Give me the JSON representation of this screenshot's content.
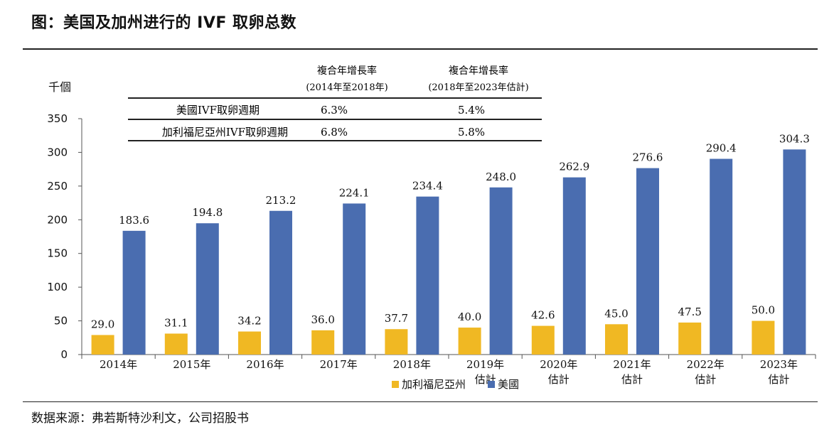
{
  "title": "图：美国及加州进行的 IVF 取卵总数",
  "source": "数据来源：弗若斯特沙利文，公司招股书",
  "colors": {
    "ca": "#f0b823",
    "us": "#4a6db0",
    "axis": "#555555",
    "text": "#111111"
  },
  "cagr_table": {
    "col1_header_line1": "複合年增長率",
    "col1_header_line2": "(2014年至2018年)",
    "col2_header_line1": "複合年增長率",
    "col2_header_line2": "(2018年至2023年估計)",
    "rows": [
      {
        "label": "美國IVF取卵週期",
        "v1": "6.3%",
        "v2": "5.4%"
      },
      {
        "label": "加利福尼亞州IVF取卵週期",
        "v1": "6.8%",
        "v2": "5.8%"
      }
    ]
  },
  "chart_data": {
    "type": "bar",
    "ylabel": "千個",
    "ylim": [
      0,
      350
    ],
    "yticks": [
      0,
      50,
      100,
      150,
      200,
      250,
      300,
      350
    ],
    "grid": false,
    "legend_position": "bottom",
    "categories": [
      [
        "2014年"
      ],
      [
        "2015年"
      ],
      [
        "2016年"
      ],
      [
        "2017年"
      ],
      [
        "2018年"
      ],
      [
        "2019年",
        "估計"
      ],
      [
        "2020年",
        "估計"
      ],
      [
        "2021年",
        "估計"
      ],
      [
        "2022年",
        "估計"
      ],
      [
        "2023年",
        "估計"
      ]
    ],
    "series": [
      {
        "name": "加利福尼亞州",
        "color": "#f0b823",
        "values": [
          29.0,
          31.1,
          34.2,
          36.0,
          37.7,
          40.0,
          42.6,
          45.0,
          47.5,
          50.0
        ],
        "labels": [
          "29.0",
          "31.1",
          "34.2",
          "36.0",
          "37.7",
          "40.0",
          "42.6",
          "45.0",
          "47.5",
          "50.0"
        ]
      },
      {
        "name": "美國",
        "color": "#4a6db0",
        "values": [
          183.6,
          194.8,
          213.2,
          224.1,
          234.4,
          248.0,
          262.9,
          276.6,
          290.4,
          304.3
        ],
        "labels": [
          "183.6",
          "194.8",
          "213.2",
          "224.1",
          "234.4",
          "248.0",
          "262.9",
          "276.6",
          "290.4",
          "304.3"
        ]
      }
    ]
  }
}
